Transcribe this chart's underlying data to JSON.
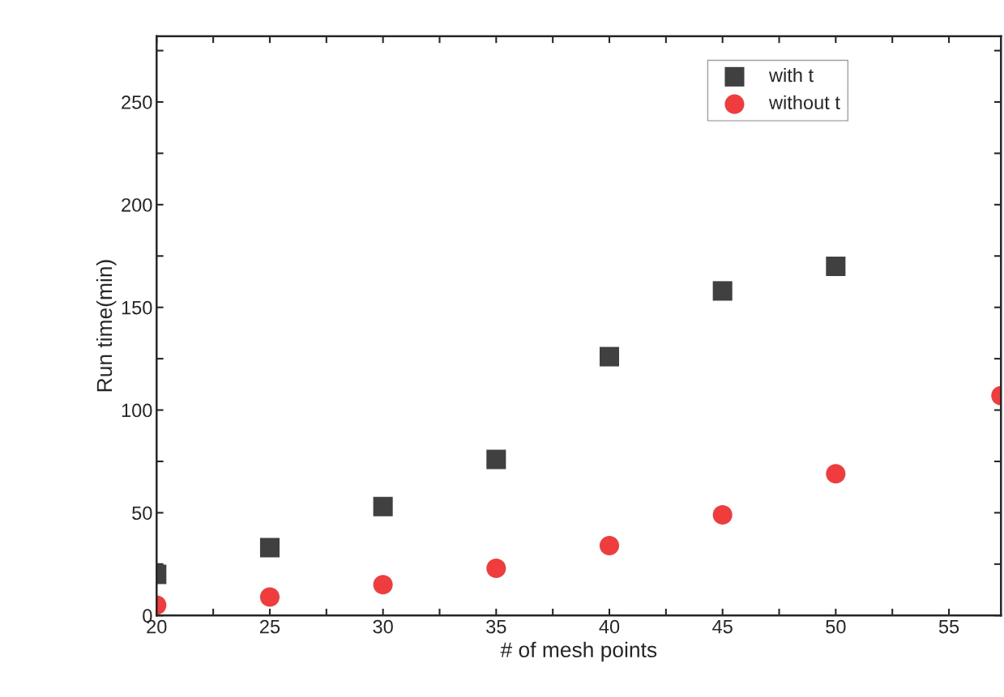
{
  "chart_data": {
    "type": "scatter",
    "xlabel": "# of mesh points",
    "ylabel": "Run time(min)",
    "xlim": [
      20,
      57.3
    ],
    "ylim": [
      0,
      282
    ],
    "xticks": [
      20,
      {
        "value": 22.5,
        "label": null
      },
      25,
      {
        "value": 27.5,
        "label": null
      },
      30,
      {
        "value": 32.5,
        "label": null
      },
      35,
      {
        "value": 37.5,
        "label": null
      },
      40,
      {
        "value": 42.5,
        "label": null
      },
      45,
      {
        "value": 47.5,
        "label": null
      },
      50,
      {
        "value": 52.5,
        "label": null
      },
      55
    ],
    "yticks": [
      0,
      {
        "value": 25,
        "label": null
      },
      50,
      {
        "value": 75,
        "label": null
      },
      100,
      {
        "value": 125,
        "label": null
      },
      150,
      {
        "value": 175,
        "label": null
      },
      200,
      {
        "value": 225,
        "label": null
      },
      250,
      {
        "value": 275,
        "label": null
      }
    ],
    "grid": false,
    "legend": "top right",
    "series": [
      {
        "name": "with t",
        "color": "#404040",
        "marker": "square",
        "x": [
          20,
          25,
          30,
          35,
          40,
          45,
          50
        ],
        "values": [
          20,
          33,
          53,
          76,
          126,
          158,
          170
        ]
      },
      {
        "name": "without t",
        "color": "#f03c3c",
        "marker": "circle",
        "x": [
          20,
          25,
          30,
          35,
          40,
          45,
          50,
          57.3
        ],
        "values": [
          5,
          9,
          15,
          23,
          34,
          49,
          69,
          107
        ]
      }
    ]
  }
}
